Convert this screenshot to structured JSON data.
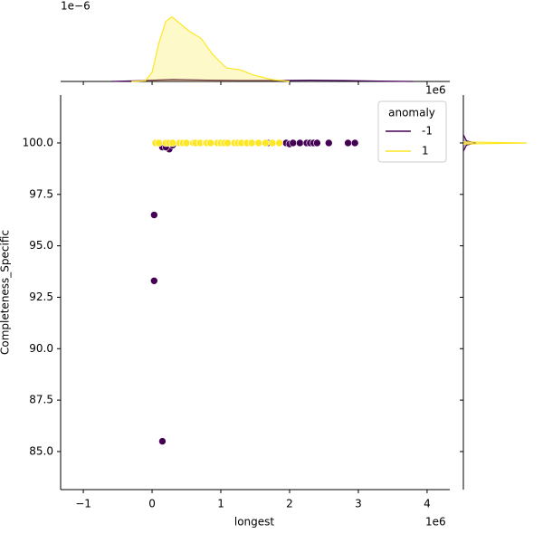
{
  "chart_data": [
    {
      "type": "scatter",
      "x_label": "longest",
      "y_label": "Completeness_Specific",
      "x_offset_label": "1e6",
      "xlim": [
        -1.33,
        4.33
      ],
      "xticks": [
        {
          "value": -1,
          "label": "−1"
        },
        0,
        1,
        2,
        3,
        4
      ],
      "ylim": [
        83.15,
        102.33
      ],
      "yticks": [
        {
          "value": 85,
          "label": "85.0"
        },
        87.5,
        {
          "value": 90,
          "label": "90.0"
        },
        92.5,
        {
          "value": 95,
          "label": "95.0"
        },
        97.5,
        {
          "value": 100,
          "label": "100.0"
        }
      ],
      "legend_title": "anomaly",
      "legend_position": "upper right",
      "series": [
        {
          "name": "-1",
          "color": "#440154",
          "x": [
            0.03,
            0.03,
            0.15,
            0.25,
            0.15,
            0.2,
            0.3,
            1.68,
            1.95,
            2.0,
            2.05,
            2.15,
            2.25,
            2.3,
            2.35,
            2.4,
            2.57,
            2.85,
            2.95
          ],
          "values": [
            96.5,
            93.3,
            85.5,
            99.7,
            99.8,
            99.8,
            99.9,
            100,
            100,
            99.95,
            100,
            100,
            100,
            100,
            100,
            100,
            100,
            100,
            100
          ]
        },
        {
          "name": "1",
          "color": "#fde725",
          "x": [
            0.05,
            0.1,
            0.2,
            0.25,
            0.3,
            0.4,
            0.45,
            0.5,
            0.6,
            0.63,
            0.7,
            0.78,
            0.8,
            0.85,
            0.95,
            1.0,
            1.05,
            1.1,
            1.2,
            1.25,
            1.3,
            1.38,
            1.45,
            1.55,
            1.65,
            1.75,
            1.85
          ],
          "values": [
            100,
            100,
            100,
            100,
            100,
            100,
            100,
            100,
            100,
            100,
            100,
            100,
            100,
            100,
            100,
            100,
            100,
            100,
            100,
            100,
            100,
            100,
            100,
            100,
            100,
            100,
            100
          ]
        }
      ]
    },
    {
      "type": "kde",
      "orientation": "vertical",
      "y_offset_label": "1e−6",
      "x_offset_label": "1e6",
      "ylim": [
        0,
        1.05
      ],
      "series": [
        {
          "name": "-1",
          "color": "#440154",
          "x": [
            -0.6,
            -0.2,
            0.3,
            0.8,
            1.3,
            1.8,
            2.3,
            2.8,
            3.3,
            3.8
          ],
          "values": [
            0,
            0.01,
            0.03,
            0.02,
            0.015,
            0.015,
            0.02,
            0.015,
            0.005,
            0
          ]
        },
        {
          "name": "1",
          "color": "#fde725",
          "x": [
            -0.3,
            -0.1,
            0,
            0.1,
            0.2,
            0.29,
            0.4,
            0.55,
            0.71,
            0.88,
            1.08,
            1.28,
            1.47,
            1.74,
            2.0
          ],
          "values": [
            0,
            0.01,
            0.14,
            0.6,
            0.93,
            1.0,
            0.9,
            0.77,
            0.67,
            0.42,
            0.21,
            0.18,
            0.1,
            0.03,
            0
          ]
        }
      ]
    },
    {
      "type": "kde",
      "orientation": "horizontal",
      "xlim": [
        0,
        1
      ],
      "series": [
        {
          "name": "-1",
          "color": "#440154",
          "y": [
            99.6,
            99.9,
            100,
            100.1,
            100.4
          ],
          "values": [
            0,
            0.05,
            0.2,
            0.05,
            0
          ]
        },
        {
          "name": "1",
          "color": "#fde725",
          "y": [
            99.95,
            100,
            100.05
          ],
          "values": [
            0,
            1,
            0
          ]
        }
      ]
    }
  ]
}
